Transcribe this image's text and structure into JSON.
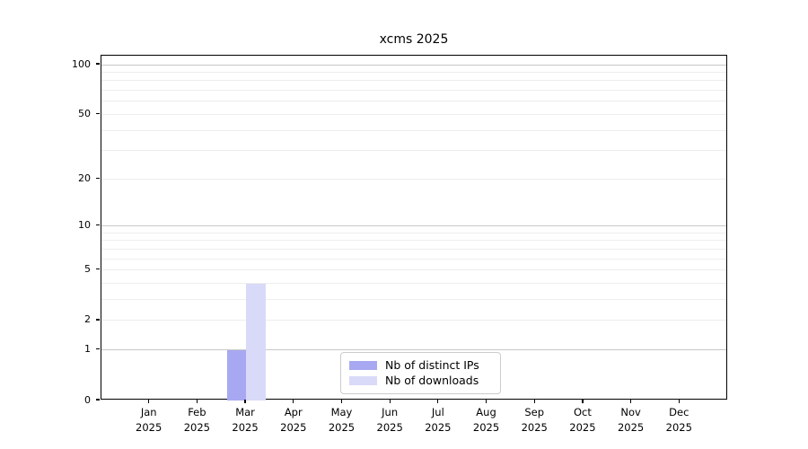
{
  "title": "xcms 2025",
  "chart_data": {
    "type": "bar",
    "title": "xcms 2025",
    "categories": [
      {
        "month": "Jan",
        "year": "2025"
      },
      {
        "month": "Feb",
        "year": "2025"
      },
      {
        "month": "Mar",
        "year": "2025"
      },
      {
        "month": "Apr",
        "year": "2025"
      },
      {
        "month": "May",
        "year": "2025"
      },
      {
        "month": "Jun",
        "year": "2025"
      },
      {
        "month": "Jul",
        "year": "2025"
      },
      {
        "month": "Aug",
        "year": "2025"
      },
      {
        "month": "Sep",
        "year": "2025"
      },
      {
        "month": "Oct",
        "year": "2025"
      },
      {
        "month": "Nov",
        "year": "2025"
      },
      {
        "month": "Dec",
        "year": "2025"
      }
    ],
    "series": [
      {
        "name": "Nb of distinct IPs",
        "color": "#a8a8f2",
        "values": [
          0,
          0,
          1,
          0,
          0,
          0,
          0,
          0,
          0,
          0,
          0,
          0
        ]
      },
      {
        "name": "Nb of downloads",
        "color": "#d9d9f8",
        "values": [
          0,
          0,
          4,
          0,
          0,
          0,
          0,
          0,
          0,
          0,
          0,
          0
        ]
      }
    ],
    "yscale": "log1p",
    "yticks": [
      0,
      1,
      2,
      5,
      10,
      20,
      50,
      100
    ],
    "major_gridlines": [
      1,
      10,
      100
    ],
    "minor_gridlines": [
      2,
      3,
      4,
      5,
      6,
      7,
      8,
      9,
      20,
      30,
      40,
      50,
      60,
      70,
      80,
      90
    ],
    "ylim": [
      0,
      113
    ],
    "xlabel": "",
    "ylabel": "",
    "grid": "horizontal",
    "legend_position": "lower center"
  },
  "colors": {
    "background": "#ffffff",
    "spine": "#000000",
    "grid_major": "#c8c8c8",
    "grid_minor": "#ededed",
    "text": "#000000",
    "legend_border": "#cccccc",
    "bar_distinct_ips": "#a8a8f2",
    "bar_downloads": "#d9d9f8"
  }
}
